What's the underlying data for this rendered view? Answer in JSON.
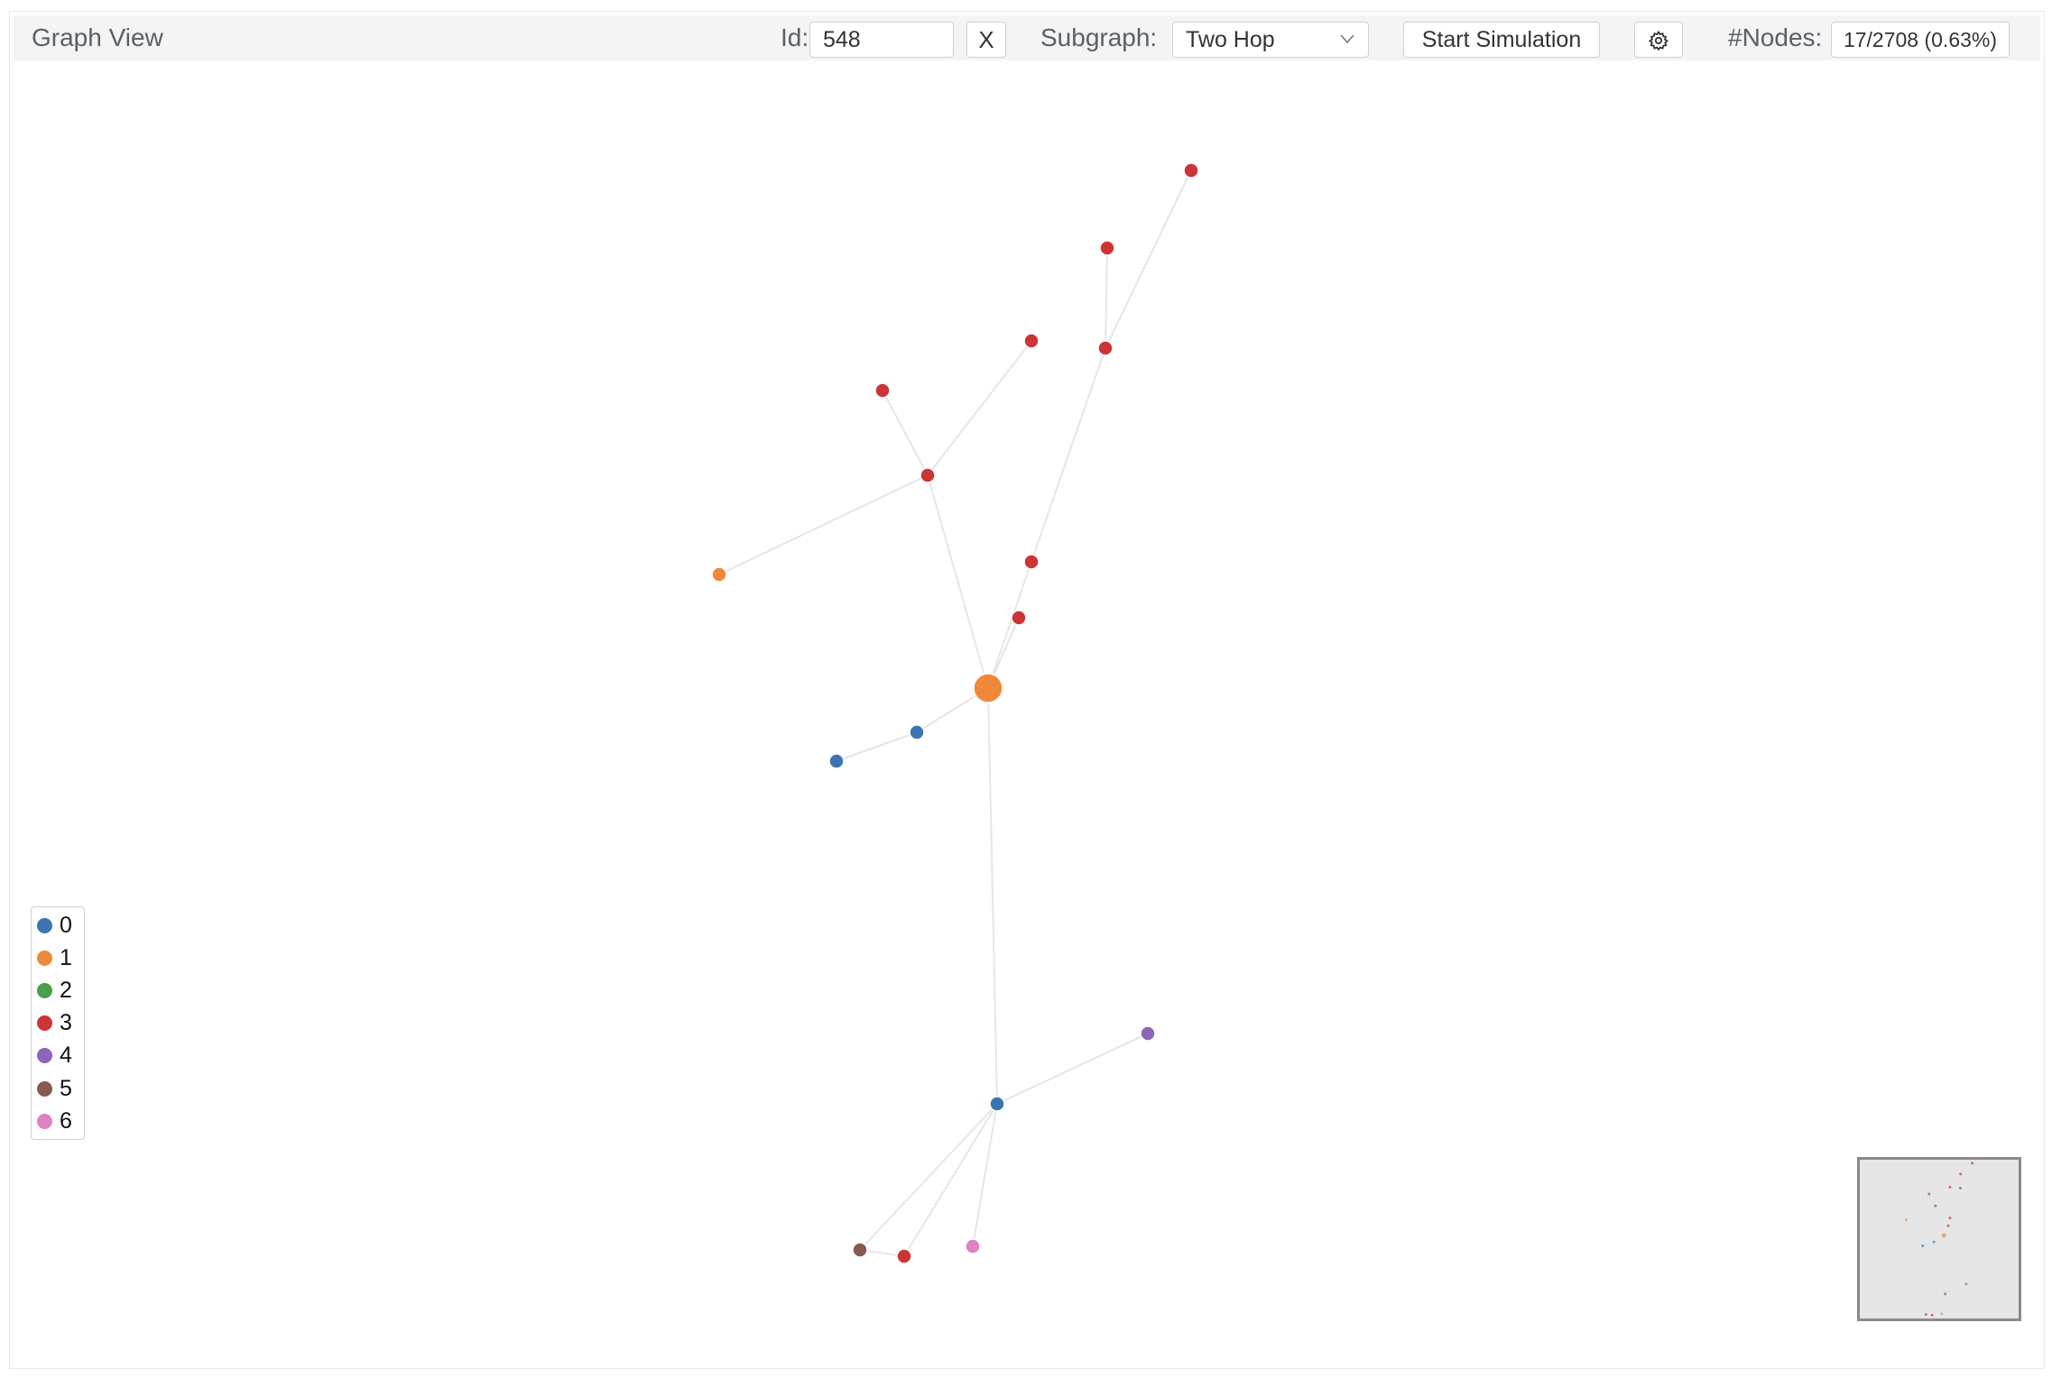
{
  "header": {
    "title": "Graph View",
    "id_label": "Id:",
    "id_value": "548",
    "clear_label": "X",
    "subgraph_label": "Subgraph:",
    "subgraph_value": "Two Hop",
    "simulate_label": "Start Simulation",
    "nodes_label": "#Nodes:",
    "nodes_count": "17/2708 (0.63%)"
  },
  "legend": [
    {
      "label": "0",
      "color": "#3a75b0"
    },
    {
      "label": "1",
      "color": "#f0883a"
    },
    {
      "label": "2",
      "color": "#4a9e4a"
    },
    {
      "label": "3",
      "color": "#cc3535"
    },
    {
      "label": "4",
      "color": "#8c67b7"
    },
    {
      "label": "5",
      "color": "#875a50"
    },
    {
      "label": "6",
      "color": "#dd82c3"
    }
  ],
  "graph": {
    "focus_node": "548",
    "edge_color": "#e6e6e6",
    "nodes": [
      {
        "class": 1,
        "focus": true
      },
      {
        "class": 3
      },
      {
        "class": 3
      },
      {
        "class": 3
      },
      {
        "class": 3
      },
      {
        "class": 3
      },
      {
        "class": 3
      },
      {
        "class": 3
      },
      {
        "class": 3
      },
      {
        "class": 1
      },
      {
        "class": 0
      },
      {
        "class": 0
      },
      {
        "class": 0
      },
      {
        "class": 4
      },
      {
        "class": 5
      },
      {
        "class": 3
      },
      {
        "class": 6
      }
    ],
    "edges": [
      [
        0,
        1
      ],
      [
        0,
        2
      ],
      [
        2,
        3
      ],
      [
        3,
        4
      ],
      [
        3,
        5
      ],
      [
        0,
        6
      ],
      [
        6,
        7
      ],
      [
        6,
        8
      ],
      [
        6,
        9
      ],
      [
        0,
        10
      ],
      [
        10,
        11
      ],
      [
        0,
        12
      ],
      [
        12,
        13
      ],
      [
        12,
        14
      ],
      [
        12,
        15
      ],
      [
        12,
        16
      ],
      [
        14,
        15
      ]
    ]
  }
}
